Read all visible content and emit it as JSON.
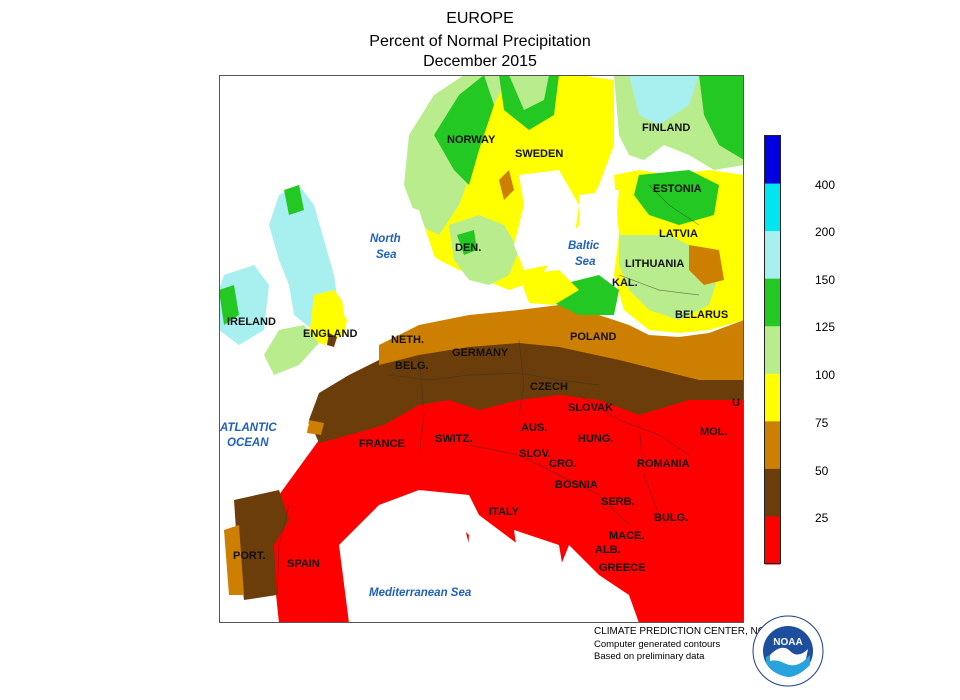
{
  "titles": {
    "line1": "EUROPE",
    "line2": "Percent of Normal Precipitation",
    "line3": "December 2015"
  },
  "legend": {
    "colors": [
      "#0000e0",
      "#00e6f0",
      "#a8f0f0",
      "#23c823",
      "#b8ec8c",
      "#ffff00",
      "#cc7f00",
      "#6b3d0a",
      "#ff0000"
    ],
    "labels": [
      "400",
      "200",
      "150",
      "125",
      "100",
      "75",
      "50",
      "25"
    ]
  },
  "regions": {
    "norway": "NORWAY",
    "sweden": "SWEDEN",
    "finland": "FINLAND",
    "estonia": "ESTONIA",
    "latvia": "LATVIA",
    "lithuania": "LITHUANIA",
    "kal": "KAL.",
    "belarus": "BELARUS",
    "den": "DEN.",
    "ireland": "IRELAND",
    "england": "ENGLAND",
    "neth": "NETH.",
    "belg": "BELG.",
    "germany": "GERMANY",
    "poland": "POLAND",
    "czech": "CZECH",
    "slovak": "SLOVAK",
    "uk_edge": "U",
    "france": "FRANCE",
    "switz": "SWITZ.",
    "aus": "AUS.",
    "hung": "HUNG.",
    "mol": "MOL.",
    "slov": "SLOV.",
    "cro": "CRO.",
    "romania": "ROMANIA",
    "bosnia": "BOSNIA",
    "serb": "SERB.",
    "bulg": "BULG.",
    "italy": "ITALY",
    "mace": "MACE.",
    "alb": "ALB.",
    "greece": "GREECE",
    "port": "PORT.",
    "spain": "SPAIN"
  },
  "seas": {
    "north_sea": [
      "North",
      "Sea"
    ],
    "baltic_sea": [
      "Baltic",
      "Sea"
    ],
    "atlantic": [
      "ATLANTIC",
      "OCEAN"
    ],
    "mediterranean": "Mediterranean Sea"
  },
  "credits": {
    "line1": "CLIMATE PREDICTION CENTER, NOAA",
    "line2": "Computer generated contours",
    "line3": "Based on preliminary data"
  },
  "logo": {
    "name": "noaa-logo",
    "text": "NOAA"
  }
}
